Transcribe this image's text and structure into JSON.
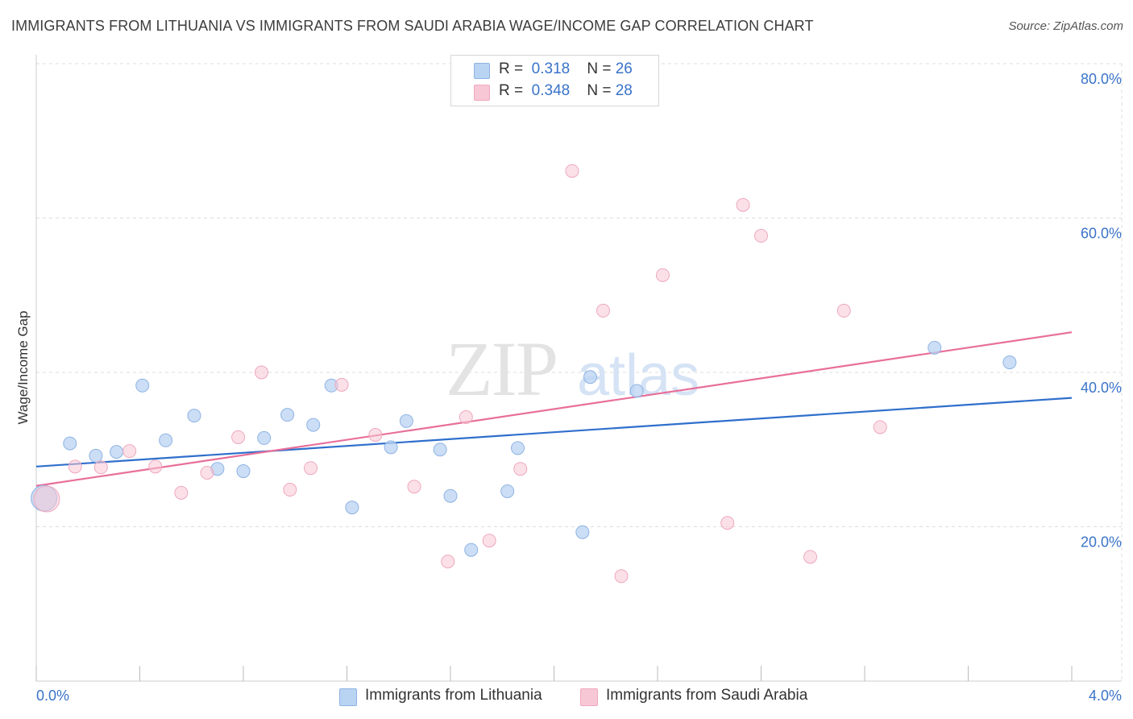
{
  "title": "IMMIGRANTS FROM LITHUANIA VS IMMIGRANTS FROM SAUDI ARABIA WAGE/INCOME GAP CORRELATION CHART",
  "source": "Source: ZipAtlas.com",
  "watermark": {
    "zip": "ZIP",
    "atlas": "atlas"
  },
  "legend": {
    "r_label": "R =",
    "n_label": "N =",
    "rows": [
      {
        "r": "0.318",
        "n": "26"
      },
      {
        "r": "0.348",
        "n": "28"
      }
    ]
  },
  "colors": {
    "blue_fill": "#b9d3f3",
    "blue_stroke": "#8fb3e3",
    "blue_line": "#2f6fcc",
    "pink_fill": "#f8c7d6",
    "pink_stroke": "#eea8be",
    "pink_line": "#e86f9a",
    "axis_label": "#3a73c8",
    "grid": "#dddddd"
  },
  "chart_data": {
    "type": "scatter",
    "title": "IMMIGRANTS FROM LITHUANIA VS IMMIGRANTS FROM SAUDI ARABIA WAGE/INCOME GAP CORRELATION CHART",
    "xlabel": "",
    "ylabel": "Wage/Income Gap",
    "xlim": [
      0,
      4
    ],
    "ylim": [
      0,
      80
    ],
    "x_tick_labels": [
      "0.0%",
      "4.0%"
    ],
    "y_ticks": [
      20,
      40,
      60,
      80
    ],
    "y_tick_labels": [
      "20.0%",
      "40.0%",
      "60.0%",
      "80.0%"
    ],
    "series": [
      {
        "name": "Immigrants from Lithuania",
        "r": 0.318,
        "n": 26,
        "trend": {
          "x": [
            0,
            4
          ],
          "y": [
            27.8,
            36.7
          ]
        },
        "points": [
          {
            "x": 0.03,
            "y": 23.7,
            "big": true
          },
          {
            "x": 0.13,
            "y": 30.8
          },
          {
            "x": 0.23,
            "y": 29.2
          },
          {
            "x": 0.31,
            "y": 29.7
          },
          {
            "x": 0.41,
            "y": 38.3
          },
          {
            "x": 0.5,
            "y": 31.2
          },
          {
            "x": 0.61,
            "y": 34.4
          },
          {
            "x": 0.7,
            "y": 27.5
          },
          {
            "x": 0.8,
            "y": 27.2
          },
          {
            "x": 0.88,
            "y": 31.5
          },
          {
            "x": 0.97,
            "y": 34.5
          },
          {
            "x": 1.07,
            "y": 33.2
          },
          {
            "x": 1.14,
            "y": 38.3
          },
          {
            "x": 1.22,
            "y": 22.5
          },
          {
            "x": 1.37,
            "y": 30.3
          },
          {
            "x": 1.43,
            "y": 33.7
          },
          {
            "x": 1.56,
            "y": 30.0
          },
          {
            "x": 1.6,
            "y": 24.0
          },
          {
            "x": 1.68,
            "y": 17.0
          },
          {
            "x": 1.82,
            "y": 24.6
          },
          {
            "x": 1.86,
            "y": 30.2
          },
          {
            "x": 2.11,
            "y": 19.3
          },
          {
            "x": 2.14,
            "y": 39.4
          },
          {
            "x": 2.32,
            "y": 37.6
          },
          {
            "x": 3.47,
            "y": 43.2
          },
          {
            "x": 3.76,
            "y": 41.3
          }
        ]
      },
      {
        "name": "Immigrants from Saudi Arabia",
        "r": 0.348,
        "n": 28,
        "trend": {
          "x": [
            0,
            4
          ],
          "y": [
            25.3,
            45.2
          ]
        },
        "points": [
          {
            "x": 0.04,
            "y": 23.6,
            "big": true
          },
          {
            "x": 0.15,
            "y": 27.8
          },
          {
            "x": 0.25,
            "y": 27.7
          },
          {
            "x": 0.36,
            "y": 29.8
          },
          {
            "x": 0.46,
            "y": 27.8
          },
          {
            "x": 0.56,
            "y": 24.4
          },
          {
            "x": 0.66,
            "y": 27.0
          },
          {
            "x": 0.78,
            "y": 31.6
          },
          {
            "x": 0.87,
            "y": 40.0
          },
          {
            "x": 0.98,
            "y": 24.8
          },
          {
            "x": 1.06,
            "y": 27.6
          },
          {
            "x": 1.18,
            "y": 38.4
          },
          {
            "x": 1.31,
            "y": 31.9
          },
          {
            "x": 1.46,
            "y": 25.2
          },
          {
            "x": 1.59,
            "y": 15.5
          },
          {
            "x": 1.66,
            "y": 34.2
          },
          {
            "x": 1.75,
            "y": 18.2
          },
          {
            "x": 1.87,
            "y": 27.5
          },
          {
            "x": 2.07,
            "y": 66.1
          },
          {
            "x": 2.19,
            "y": 48.0
          },
          {
            "x": 2.26,
            "y": 13.6
          },
          {
            "x": 2.42,
            "y": 52.6
          },
          {
            "x": 2.67,
            "y": 20.5
          },
          {
            "x": 2.73,
            "y": 61.7
          },
          {
            "x": 2.8,
            "y": 57.7
          },
          {
            "x": 2.99,
            "y": 16.1
          },
          {
            "x": 3.12,
            "y": 48.0
          },
          {
            "x": 3.26,
            "y": 32.9
          }
        ]
      }
    ]
  }
}
